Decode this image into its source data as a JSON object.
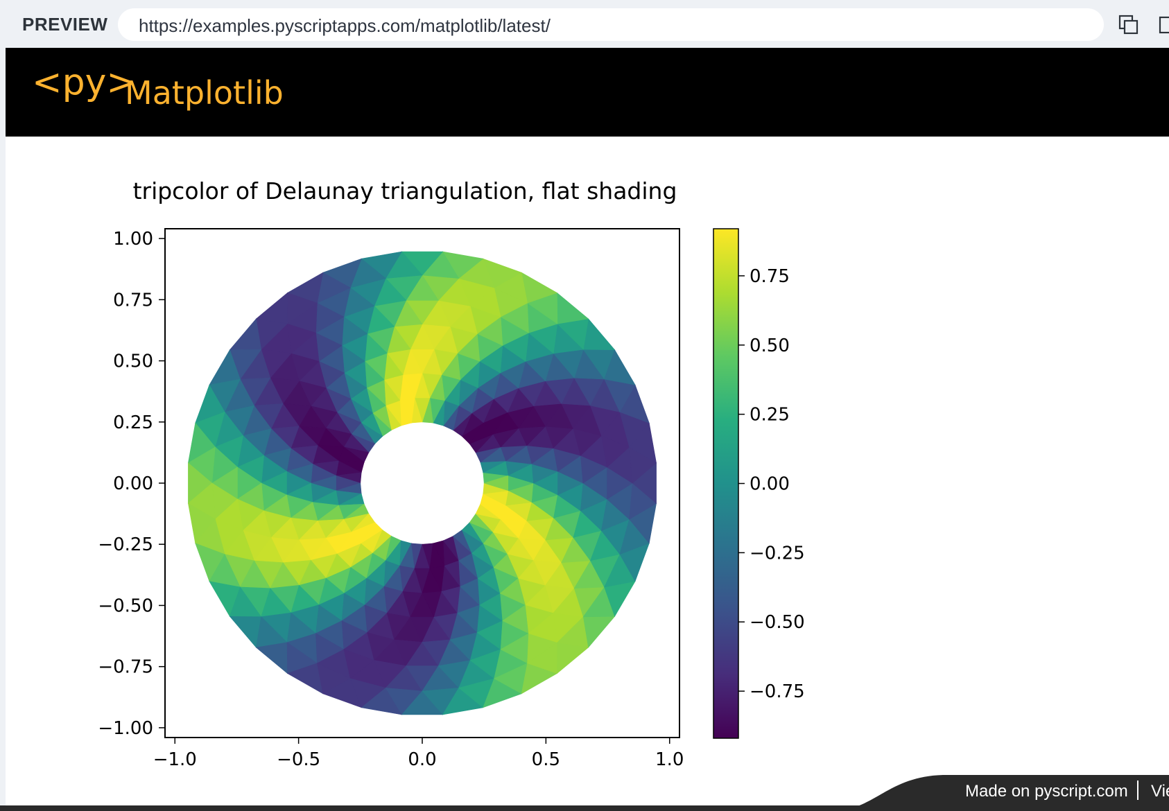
{
  "preview": {
    "label": "PREVIEW",
    "url": "https://examples.pyscriptapps.com/matplotlib/latest/"
  },
  "header": {
    "logo": "<py>",
    "title": "Matplotlib"
  },
  "footer": {
    "made_on": "Made on pyscript.com",
    "view": "Vie"
  },
  "colors": {
    "brand": "#fdb22f",
    "header_bg": "#000000"
  },
  "chart_data": {
    "type": "heatmap",
    "plot_kind": "tripcolor",
    "title": "tripcolor of Delaunay triangulation, flat shading",
    "xlabel": "",
    "ylabel": "",
    "xlim": [
      -1.04,
      1.04
    ],
    "ylim": [
      -1.04,
      1.04
    ],
    "x_ticks": [
      "−1.0",
      "−0.5",
      "0.0",
      "0.5",
      "1.0"
    ],
    "y_ticks": [
      "1.00",
      "0.75",
      "0.50",
      "0.25",
      "0.00",
      "−0.25",
      "−0.50",
      "−0.75",
      "−1.00"
    ],
    "domain": {
      "shape": "annulus",
      "inner_radius": 0.25,
      "outer_radius": 0.95
    },
    "colormap": "viridis",
    "colorbar": {
      "range": [
        -0.92,
        0.92
      ],
      "ticks": [
        "0.75",
        "0.50",
        "0.25",
        "0.00",
        "−0.25",
        "−0.50",
        "−0.75"
      ]
    },
    "grid": false
  }
}
